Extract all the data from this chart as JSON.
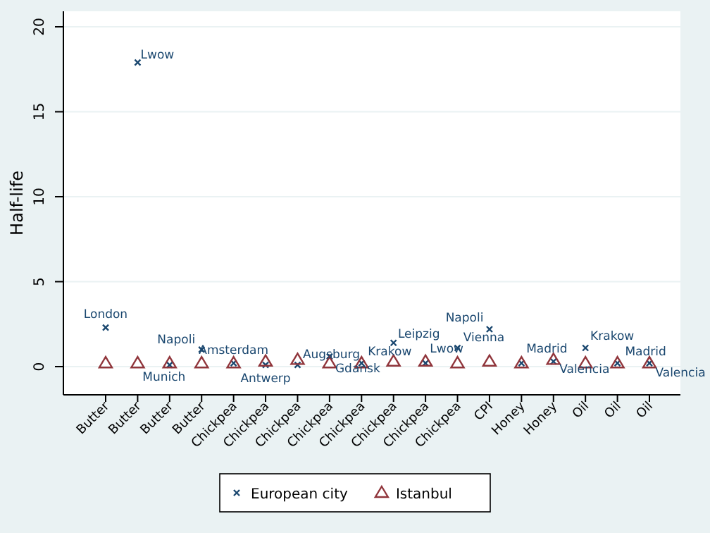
{
  "chart_data": {
    "type": "scatter",
    "ylabel": "Half-life",
    "categories": [
      "Butter",
      "Butter",
      "Butter",
      "Butter",
      "Chickpea",
      "Chickpea",
      "Chickpea",
      "Chickpea",
      "Chickpea",
      "Chickpea",
      "Chickpea",
      "Chickpea",
      "CPI",
      "Honey",
      "Honey",
      "Oil",
      "Oil",
      "Oil"
    ],
    "series": [
      {
        "name": "European city",
        "color": "#1a476f",
        "marker": "cross",
        "values": [
          2.3,
          17.9,
          0.1,
          1.0,
          0.2,
          0.1,
          0.1,
          0.6,
          0.2,
          1.4,
          0.2,
          1.1,
          2.2,
          0.2,
          0.3,
          1.1,
          0.2,
          0.2
        ]
      },
      {
        "name": "Istanbul",
        "color": "#90353b",
        "marker": "triangle",
        "values": [
          0.2,
          0.2,
          0.2,
          0.2,
          0.2,
          0.3,
          0.4,
          0.2,
          0.2,
          0.3,
          0.3,
          0.2,
          0.3,
          0.2,
          0.4,
          0.2,
          0.2,
          0.2
        ]
      }
    ],
    "annotations": [
      "London",
      "Lwow",
      "Munich",
      "Napoli",
      "Amsterdam",
      "Antwerp",
      "Augsburg",
      "Gdansk",
      "Krakow",
      "Leipzig",
      "Lwow",
      "Napoli",
      "Vienna",
      "Madrid",
      "Valencia",
      "Krakow",
      "Madrid",
      "Valencia"
    ],
    "ylim": [
      0,
      20
    ],
    "yticks": [
      0,
      5,
      10,
      15,
      20
    ],
    "grid": "y",
    "legend": "bottom"
  }
}
